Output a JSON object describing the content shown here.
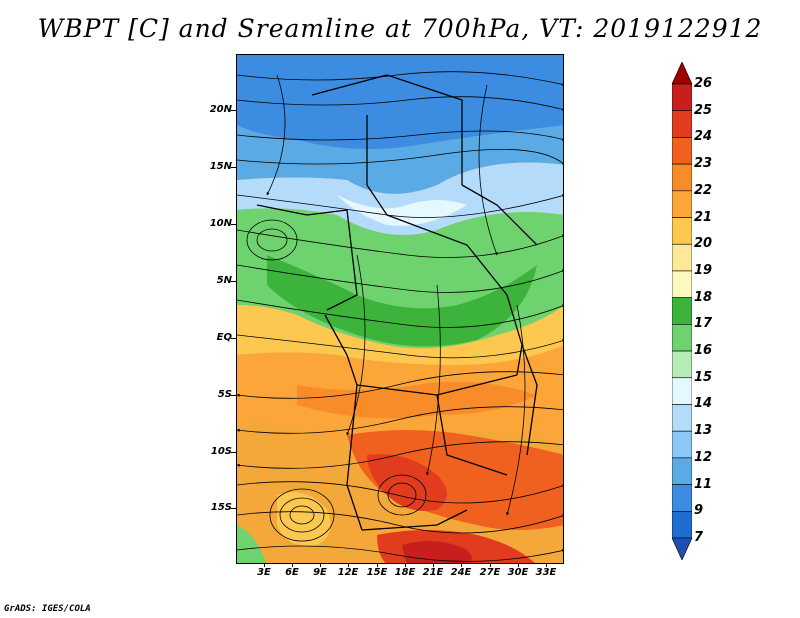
{
  "title": "WBPT [C] and Sreamline at 700hPa, VT: 2019122912",
  "footer": "GrADS: IGES/COLA",
  "lat_labels": [
    "20N",
    "15N",
    "10N",
    "5N",
    "EQ",
    "5S",
    "10S",
    "15S"
  ],
  "lon_labels": [
    "3E",
    "6E",
    "9E",
    "12E",
    "15E",
    "18E",
    "21E",
    "24E",
    "27E",
    "30E",
    "33E"
  ],
  "colorbar": {
    "levels": [
      "26",
      "25",
      "24",
      "23",
      "22",
      "21",
      "20",
      "19",
      "18",
      "17",
      "16",
      "15",
      "14",
      "13",
      "12",
      "11",
      "9",
      "7"
    ],
    "colors": [
      "#a00000",
      "#c81e1e",
      "#e13c1e",
      "#f0601e",
      "#f88c28",
      "#fca538",
      "#fcc850",
      "#fde89a",
      "#fdf8c0",
      "#3cb43c",
      "#6ed26e",
      "#b4ecb4",
      "#e6f8ff",
      "#b4dcfa",
      "#8cc8f5",
      "#5aaae6",
      "#3c8ce1",
      "#1e6ed2",
      "#1e50b4"
    ]
  }
}
